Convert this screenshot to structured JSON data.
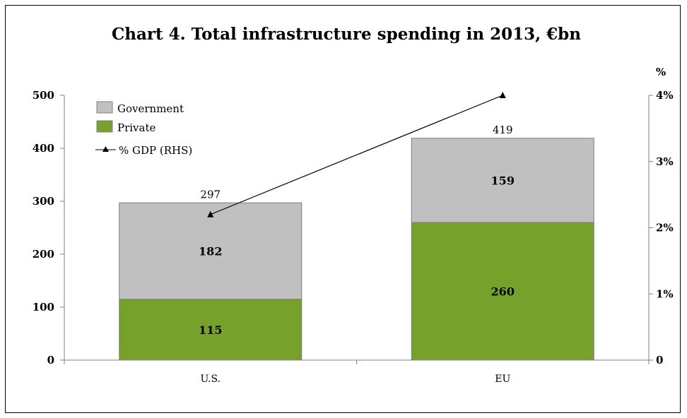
{
  "chart_data": {
    "type": "bar",
    "stacked": true,
    "title": "Chart 4. Total infrastructure spending in 2013, €bn",
    "categories": [
      "U.S.",
      "EU"
    ],
    "series": [
      {
        "name": "Private",
        "values": [
          115,
          260
        ],
        "color": "#76a12b"
      },
      {
        "name": "Government",
        "values": [
          182,
          159
        ],
        "color": "#c0c0c0"
      }
    ],
    "totals": [
      297,
      419
    ],
    "line_series": {
      "name": "% GDP (RHS)",
      "values": [
        2.2,
        4.0
      ],
      "axis": "right",
      "color": "#000000",
      "marker": "triangle"
    },
    "ylim": [
      0,
      500
    ],
    "yticks": [
      "0",
      "100",
      "200",
      "300",
      "400",
      "500"
    ],
    "y2lim": [
      0,
      4
    ],
    "y2ticks": [
      "0",
      "1%",
      "2%",
      "3%",
      "4%"
    ],
    "y2label": "%",
    "legend_position": "top-left",
    "grid": false
  }
}
